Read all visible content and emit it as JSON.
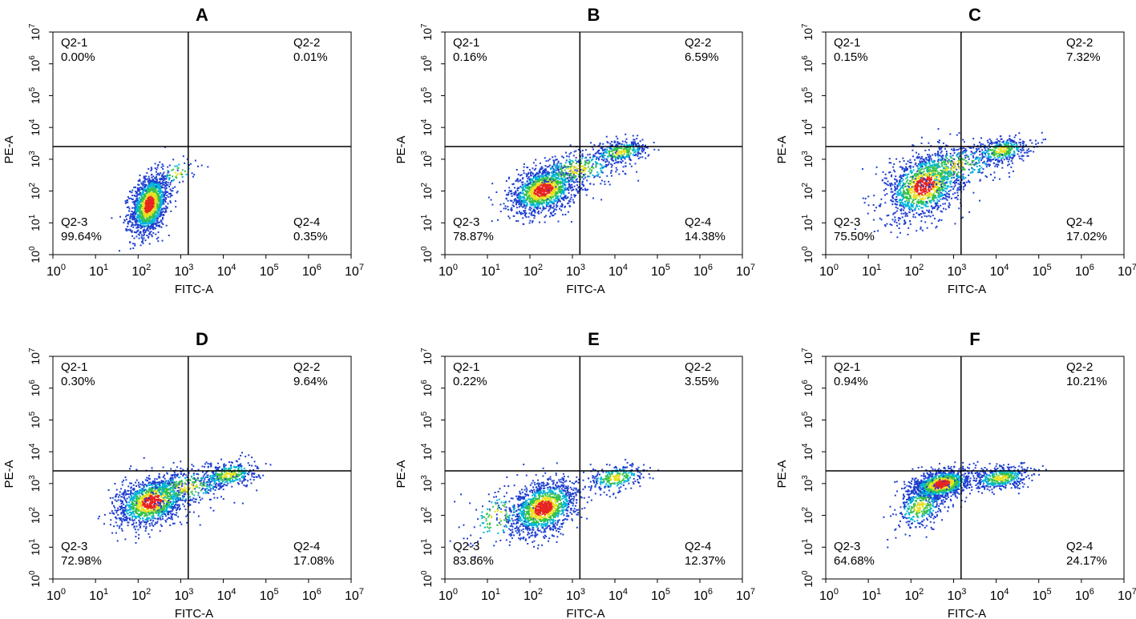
{
  "chart_data": [
    {
      "type": "scatter",
      "panel_label": "A",
      "xlabel": "FITC-A",
      "ylabel": "PE-A",
      "xscale": "log10",
      "yscale": "log10",
      "xlim": [
        1,
        10000000
      ],
      "ylim": [
        1,
        10000000
      ],
      "x_tick_labels": [
        "10^0",
        "10^1",
        "10^2",
        "10^3",
        "10^4",
        "10^5",
        "10^6",
        "10^7"
      ],
      "y_tick_labels": [
        "10^0",
        "10^1",
        "10^2",
        "10^3",
        "10^4",
        "10^5",
        "10^6",
        "10^7"
      ],
      "gate": {
        "x": 1500,
        "y": 2500
      },
      "quadrants": [
        {
          "name": "Q2-1",
          "position": "top-left",
          "percent": "0.00%"
        },
        {
          "name": "Q2-2",
          "position": "top-right",
          "percent": "0.01%"
        },
        {
          "name": "Q2-3",
          "position": "bottom-left",
          "percent": "99.64%"
        },
        {
          "name": "Q2-4",
          "position": "bottom-right",
          "percent": "0.35%"
        }
      ],
      "populations": [
        {
          "center_log": [
            2.25,
            1.6
          ],
          "spread_log": [
            0.22,
            0.45
          ],
          "count": 1500
        },
        {
          "center_log": [
            2.9,
            2.6
          ],
          "spread_log": [
            0.25,
            0.2
          ],
          "count": 60
        }
      ]
    },
    {
      "type": "scatter",
      "panel_label": "B",
      "xlabel": "FITC-A",
      "ylabel": "PE-A",
      "xscale": "log10",
      "yscale": "log10",
      "xlim": [
        1,
        10000000
      ],
      "ylim": [
        1,
        10000000
      ],
      "x_tick_labels": [
        "10^0",
        "10^1",
        "10^2",
        "10^3",
        "10^4",
        "10^5",
        "10^6",
        "10^7"
      ],
      "y_tick_labels": [
        "10^0",
        "10^1",
        "10^2",
        "10^3",
        "10^4",
        "10^5",
        "10^6",
        "10^7"
      ],
      "gate": {
        "x": 1500,
        "y": 2500
      },
      "quadrants": [
        {
          "name": "Q2-1",
          "position": "top-left",
          "percent": "0.16%"
        },
        {
          "name": "Q2-2",
          "position": "top-right",
          "percent": "6.59%"
        },
        {
          "name": "Q2-3",
          "position": "bottom-left",
          "percent": "78.87%"
        },
        {
          "name": "Q2-4",
          "position": "bottom-right",
          "percent": "14.38%"
        }
      ],
      "populations": [
        {
          "center_log": [
            2.3,
            2.05
          ],
          "spread_log": [
            0.4,
            0.35
          ],
          "count": 1400
        },
        {
          "center_log": [
            4.1,
            3.25
          ],
          "spread_log": [
            0.35,
            0.18
          ],
          "count": 350
        },
        {
          "center_log": [
            3.1,
            2.7
          ],
          "spread_log": [
            0.55,
            0.3
          ],
          "count": 300
        }
      ]
    },
    {
      "type": "scatter",
      "panel_label": "C",
      "xlabel": "FITC-A",
      "ylabel": "PE-A",
      "xscale": "log10",
      "yscale": "log10",
      "xlim": [
        1,
        10000000
      ],
      "ylim": [
        1,
        10000000
      ],
      "x_tick_labels": [
        "10^0",
        "10^1",
        "10^2",
        "10^3",
        "10^4",
        "10^5",
        "10^6",
        "10^7"
      ],
      "y_tick_labels": [
        "10^0",
        "10^1",
        "10^2",
        "10^3",
        "10^4",
        "10^5",
        "10^6",
        "10^7"
      ],
      "gate": {
        "x": 1500,
        "y": 2500
      },
      "quadrants": [
        {
          "name": "Q2-1",
          "position": "top-left",
          "percent": "0.15%"
        },
        {
          "name": "Q2-2",
          "position": "top-right",
          "percent": "7.32%"
        },
        {
          "name": "Q2-3",
          "position": "bottom-left",
          "percent": "75.50%"
        },
        {
          "name": "Q2-4",
          "position": "bottom-right",
          "percent": "17.02%"
        }
      ],
      "populations": [
        {
          "center_log": [
            2.3,
            2.2
          ],
          "spread_log": [
            0.45,
            0.5
          ],
          "count": 1300
        },
        {
          "center_log": [
            4.1,
            3.3
          ],
          "spread_log": [
            0.35,
            0.2
          ],
          "count": 380
        },
        {
          "center_log": [
            3.0,
            2.8
          ],
          "spread_log": [
            0.6,
            0.35
          ],
          "count": 320
        }
      ]
    },
    {
      "type": "scatter",
      "panel_label": "D",
      "xlabel": "FITC-A",
      "ylabel": "PE-A",
      "xscale": "log10",
      "yscale": "log10",
      "xlim": [
        1,
        10000000
      ],
      "ylim": [
        1,
        10000000
      ],
      "x_tick_labels": [
        "10^0",
        "10^1",
        "10^2",
        "10^3",
        "10^4",
        "10^5",
        "10^6",
        "10^7"
      ],
      "y_tick_labels": [
        "10^0",
        "10^1",
        "10^2",
        "10^3",
        "10^4",
        "10^5",
        "10^6",
        "10^7"
      ],
      "gate": {
        "x": 1500,
        "y": 2500
      },
      "quadrants": [
        {
          "name": "Q2-1",
          "position": "top-left",
          "percent": "0.30%"
        },
        {
          "name": "Q2-2",
          "position": "top-right",
          "percent": "9.64%"
        },
        {
          "name": "Q2-3",
          "position": "bottom-left",
          "percent": "72.98%"
        },
        {
          "name": "Q2-4",
          "position": "bottom-right",
          "percent": "17.08%"
        }
      ],
      "populations": [
        {
          "center_log": [
            2.3,
            2.45
          ],
          "spread_log": [
            0.42,
            0.38
          ],
          "count": 1300
        },
        {
          "center_log": [
            4.1,
            3.3
          ],
          "spread_log": [
            0.35,
            0.2
          ],
          "count": 380
        },
        {
          "center_log": [
            3.1,
            2.9
          ],
          "spread_log": [
            0.55,
            0.3
          ],
          "count": 320
        }
      ]
    },
    {
      "type": "scatter",
      "panel_label": "E",
      "xlabel": "FITC-A",
      "ylabel": "PE-A",
      "xscale": "log10",
      "yscale": "log10",
      "xlim": [
        1,
        10000000
      ],
      "ylim": [
        1,
        10000000
      ],
      "x_tick_labels": [
        "10^0",
        "10^1",
        "10^2",
        "10^3",
        "10^4",
        "10^5",
        "10^6",
        "10^7"
      ],
      "y_tick_labels": [
        "10^0",
        "10^1",
        "10^2",
        "10^3",
        "10^4",
        "10^5",
        "10^6",
        "10^7"
      ],
      "gate": {
        "x": 1500,
        "y": 2500
      },
      "quadrants": [
        {
          "name": "Q2-1",
          "position": "top-left",
          "percent": "0.22%"
        },
        {
          "name": "Q2-2",
          "position": "top-right",
          "percent": "3.55%"
        },
        {
          "name": "Q2-3",
          "position": "bottom-left",
          "percent": "83.86%"
        },
        {
          "name": "Q2-4",
          "position": "bottom-right",
          "percent": "12.37%"
        }
      ],
      "populations": [
        {
          "center_log": [
            2.3,
            2.25
          ],
          "spread_log": [
            0.4,
            0.4
          ],
          "count": 1400
        },
        {
          "center_log": [
            4.0,
            3.2
          ],
          "spread_log": [
            0.35,
            0.2
          ],
          "count": 280
        },
        {
          "center_log": [
            1.2,
            2.0
          ],
          "spread_log": [
            0.35,
            0.45
          ],
          "count": 120
        }
      ]
    },
    {
      "type": "scatter",
      "panel_label": "F",
      "xlabel": "FITC-A",
      "ylabel": "PE-A",
      "xscale": "log10",
      "yscale": "log10",
      "xlim": [
        1,
        10000000
      ],
      "ylim": [
        1,
        10000000
      ],
      "x_tick_labels": [
        "10^0",
        "10^1",
        "10^2",
        "10^3",
        "10^4",
        "10^5",
        "10^6",
        "10^7"
      ],
      "y_tick_labels": [
        "10^0",
        "10^1",
        "10^2",
        "10^3",
        "10^4",
        "10^5",
        "10^6",
        "10^7"
      ],
      "gate": {
        "x": 1500,
        "y": 2500
      },
      "quadrants": [
        {
          "name": "Q2-1",
          "position": "top-left",
          "percent": "0.94%"
        },
        {
          "name": "Q2-2",
          "position": "top-right",
          "percent": "10.21%"
        },
        {
          "name": "Q2-3",
          "position": "bottom-left",
          "percent": "64.68%"
        },
        {
          "name": "Q2-4",
          "position": "bottom-right",
          "percent": "24.17%"
        }
      ],
      "populations": [
        {
          "center_log": [
            2.7,
            3.0
          ],
          "spread_log": [
            0.35,
            0.22
          ],
          "count": 1200
        },
        {
          "center_log": [
            4.1,
            3.2
          ],
          "spread_log": [
            0.35,
            0.18
          ],
          "count": 450
        },
        {
          "center_log": [
            2.2,
            2.3
          ],
          "spread_log": [
            0.3,
            0.35
          ],
          "count": 350
        }
      ]
    }
  ],
  "colors": {
    "density_low": "#1f3fd0",
    "density_mid_low": "#00b4d8",
    "density_mid": "#35c24a",
    "density_mid_high": "#e8e020",
    "density_high": "#e8231f",
    "axis": "#000000"
  }
}
